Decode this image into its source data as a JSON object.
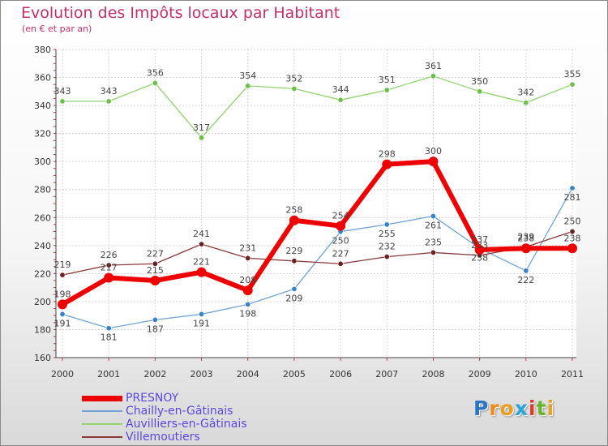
{
  "header": {
    "title": "Evolution des Impôts locaux par Habitant",
    "subtitle": "(en € et par an)"
  },
  "chart_data": {
    "type": "line",
    "title": "Evolution des Impôts locaux par Habitant",
    "subtitle": "(en € et par an)",
    "x": [
      "2000",
      "2001",
      "2002",
      "2003",
      "2004",
      "2005",
      "2006",
      "2007",
      "2008",
      "2009",
      "2010",
      "2011"
    ],
    "yticks": [
      "160",
      "180",
      "200",
      "220",
      "240",
      "260",
      "280",
      "300",
      "320",
      "340",
      "360",
      "380"
    ],
    "ylim": [
      160,
      380
    ],
    "grid": true,
    "legend_position": "bottom-left",
    "series": [
      {
        "name": "PRESNOY",
        "values": [
          198,
          217,
          215,
          221,
          208,
          258,
          254,
          298,
          300,
          237,
          238,
          238
        ],
        "color": "#ee0000",
        "labels_below": false,
        "width": 6
      },
      {
        "name": "Chailly-en-Gâtinais",
        "values": [
          191,
          181,
          187,
          191,
          198,
          209,
          250,
          255,
          261,
          238,
          222,
          281
        ],
        "color": "#6fa4d4",
        "labels_below": true,
        "width": 1.3
      },
      {
        "name": "Auvilliers-en-Gâtinais",
        "values": [
          343,
          343,
          356,
          317,
          354,
          352,
          344,
          351,
          361,
          350,
          342,
          355
        ],
        "color": "#8ed36e",
        "labels_below": false,
        "width": 1.3
      },
      {
        "name": "Villemoutiers",
        "values": [
          219,
          226,
          227,
          241,
          231,
          229,
          227,
          232,
          235,
          233,
          239,
          250
        ],
        "color": "#8a3838",
        "labels_below": false,
        "width": 1.3
      }
    ]
  },
  "legend": {
    "items": [
      {
        "label": "PRESNOY",
        "color": "#ee0000"
      },
      {
        "label": "Chailly-en-Gâtinais",
        "color": "#6fa4d4"
      },
      {
        "label": "Auvilliers-en-Gâtinais",
        "color": "#8ed36e"
      },
      {
        "label": "Villemoutiers",
        "color": "#8a3838"
      }
    ]
  },
  "logo": {
    "letters": [
      "P",
      "r",
      "o",
      "x",
      "i",
      "t",
      "i"
    ],
    "colors": [
      "#2b74c6",
      "#f08a18",
      "#e8a020",
      "#2aa3d8",
      "#e03a2a",
      "#6bb42a",
      "#e8a020"
    ]
  }
}
